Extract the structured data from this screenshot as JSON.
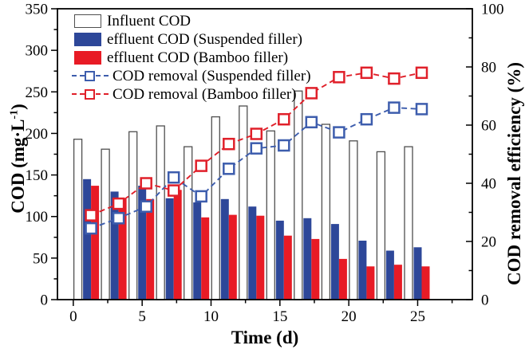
{
  "chart_data": {
    "type": "bar",
    "subtype": "grouped-bars-with-lines",
    "x": [
      1,
      3,
      5,
      7,
      9,
      11,
      13,
      15,
      17,
      19,
      21,
      23,
      25
    ],
    "bar_series": [
      {
        "name": "Influent COD",
        "values": [
          193,
          181,
          202,
          209,
          184,
          220,
          233,
          203,
          251,
          211,
          191,
          178,
          184
        ],
        "fill": "#ffffff",
        "stroke": "#4f4f4f",
        "axis": "left"
      },
      {
        "name": "effluent COD (Suspended filler)",
        "values": [
          145,
          130,
          137,
          122,
          117,
          121,
          112,
          95,
          98,
          91,
          71,
          59,
          63
        ],
        "fill": "#2d4799",
        "stroke": "none",
        "axis": "left"
      },
      {
        "name": "effluent COD (Bamboo filler)",
        "values": [
          137,
          121,
          121,
          132,
          99,
          102,
          101,
          77,
          73,
          49,
          40,
          42,
          40
        ],
        "fill": "#e81b25",
        "stroke": "none",
        "axis": "left"
      }
    ],
    "line_series": [
      {
        "name": "COD removal (Suspended filler)",
        "values": [
          24.5,
          28,
          32,
          42,
          35.5,
          45,
          52,
          53,
          61,
          57.5,
          62,
          66,
          65.5
        ],
        "color": "#3d5dad",
        "marker": "open-square",
        "dashed": true,
        "axis": "right"
      },
      {
        "name": "COD removal (Bamboo filler)",
        "values": [
          29,
          33,
          40,
          37.5,
          46,
          53.5,
          57,
          62,
          71,
          76.5,
          78,
          76,
          78
        ],
        "color": "#e0202a",
        "marker": "open-square",
        "dashed": true,
        "axis": "right"
      }
    ],
    "axes": {
      "left": {
        "label_pre": "COD (mg·L",
        "label_sup": "-1",
        "label_post": ")",
        "min": 0,
        "max": 350,
        "ticks": [
          0,
          50,
          100,
          150,
          200,
          250,
          300,
          350
        ],
        "minor_step": 25
      },
      "right": {
        "label": "COD removal efficiency (%)",
        "min": 0,
        "max": 100,
        "ticks": [
          0,
          20,
          40,
          60,
          80,
          100
        ],
        "minor_step": 10
      },
      "bottom": {
        "label": "Time (d)",
        "min": -1.15,
        "max": 28.97,
        "ticks": [
          0,
          5,
          10,
          15,
          20,
          25
        ],
        "minor_step": 2.5
      }
    },
    "legend_position": "top-left-inside",
    "grid": false
  }
}
